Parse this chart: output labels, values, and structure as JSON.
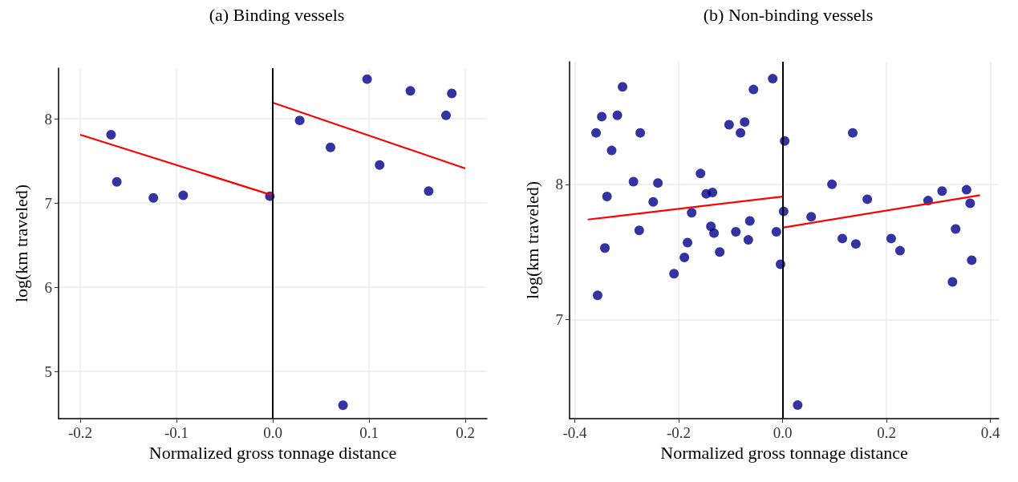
{
  "chart_data": [
    {
      "type": "scatter",
      "title": "(a) Binding vessels",
      "xlabel": "Normalized gross tonnage distance",
      "ylabel": "log(km traveled)",
      "xlim": [
        -0.2225,
        0.2225
      ],
      "xticks": [
        -0.2,
        -0.1,
        {
          "value": 0,
          "label": "0.0"
        },
        0.1,
        0.2
      ],
      "ylim": [
        4.44,
        8.6
      ],
      "yticks": [
        5,
        6,
        7,
        8
      ],
      "grid": true,
      "marker": "circle",
      "ref_lines": [
        {
          "axis": "x",
          "value": 0,
          "color": "#000000"
        }
      ],
      "series": [
        {
          "color": "#00008b",
          "x": [
            -0.168,
            -0.162,
            -0.124,
            -0.093,
            -0.003,
            0.028,
            0.06,
            0.098,
            0.111,
            0.143,
            0.162,
            0.18,
            0.186,
            0.073
          ],
          "values": [
            7.81,
            7.25,
            7.06,
            7.09,
            7.08,
            7.98,
            7.66,
            8.47,
            7.45,
            8.33,
            7.14,
            8.04,
            8.3,
            4.6
          ]
        },
        {
          "type": "line",
          "color": "#ff0000",
          "marker": "none",
          "line_style": "solid",
          "x": [
            -0.2,
            0
          ],
          "values": [
            7.81,
            7.09
          ]
        },
        {
          "type": "line",
          "color": "#ff0000",
          "marker": "none",
          "line_style": "solid",
          "x": [
            0,
            0.2
          ],
          "values": [
            8.19,
            7.41
          ]
        }
      ]
    },
    {
      "type": "scatter",
      "title": "(b) Non-binding vessels",
      "xlabel": "Normalized gross tonnage distance",
      "ylabel": "log(km traveled)",
      "xlim": [
        -0.41,
        0.416
      ],
      "xticks": [
        -0.4,
        -0.2,
        {
          "value": 0,
          "label": "0.0"
        },
        0.2,
        0.4
      ],
      "ylim": [
        6.27,
        8.905
      ],
      "yticks": [
        7,
        8
      ],
      "grid": true,
      "marker": "circle",
      "ref_lines": [
        {
          "axis": "x",
          "value": 0,
          "color": "#000000"
        }
      ],
      "series": [
        {
          "color": "#00008b",
          "x": [
            -0.359,
            -0.348,
            -0.308,
            -0.318,
            -0.329,
            -0.338,
            -0.342,
            -0.356,
            -0.274,
            -0.287,
            -0.276,
            -0.24,
            -0.249,
            -0.209,
            -0.189,
            -0.183,
            -0.175,
            -0.158,
            -0.147,
            -0.135,
            -0.138,
            -0.132,
            -0.121,
            -0.103,
            -0.09,
            -0.081,
            -0.073,
            -0.066,
            -0.063,
            -0.056,
            -0.019,
            -0.012,
            -0.004,
            0.004,
            0.002,
            0.029,
            0.055,
            0.095,
            0.115,
            0.141,
            0.135,
            0.163,
            0.209,
            0.226,
            0.28,
            0.307,
            0.327,
            0.333,
            0.354,
            0.361,
            0.364
          ],
          "values": [
            8.38,
            8.5,
            8.72,
            8.51,
            8.25,
            7.91,
            7.53,
            7.18,
            8.38,
            8.02,
            7.66,
            8.01,
            7.87,
            7.34,
            7.46,
            7.57,
            7.79,
            8.08,
            7.93,
            7.94,
            7.69,
            7.64,
            7.5,
            8.44,
            7.65,
            8.38,
            8.46,
            7.59,
            7.73,
            8.7,
            8.78,
            7.65,
            7.41,
            8.32,
            7.8,
            6.37,
            7.76,
            8,
            7.6,
            7.56,
            8.38,
            7.89,
            7.6,
            7.51,
            7.88,
            7.95,
            7.28,
            7.67,
            7.96,
            7.86,
            7.44
          ]
        },
        {
          "type": "line",
          "color": "#ff0000",
          "marker": "none",
          "line_style": "solid",
          "x": [
            -0.375,
            0
          ],
          "values": [
            7.74,
            7.91
          ]
        },
        {
          "type": "line",
          "color": "#ff0000",
          "marker": "none",
          "line_style": "solid",
          "x": [
            0,
            0.38
          ],
          "values": [
            7.68,
            7.92
          ]
        }
      ]
    }
  ]
}
